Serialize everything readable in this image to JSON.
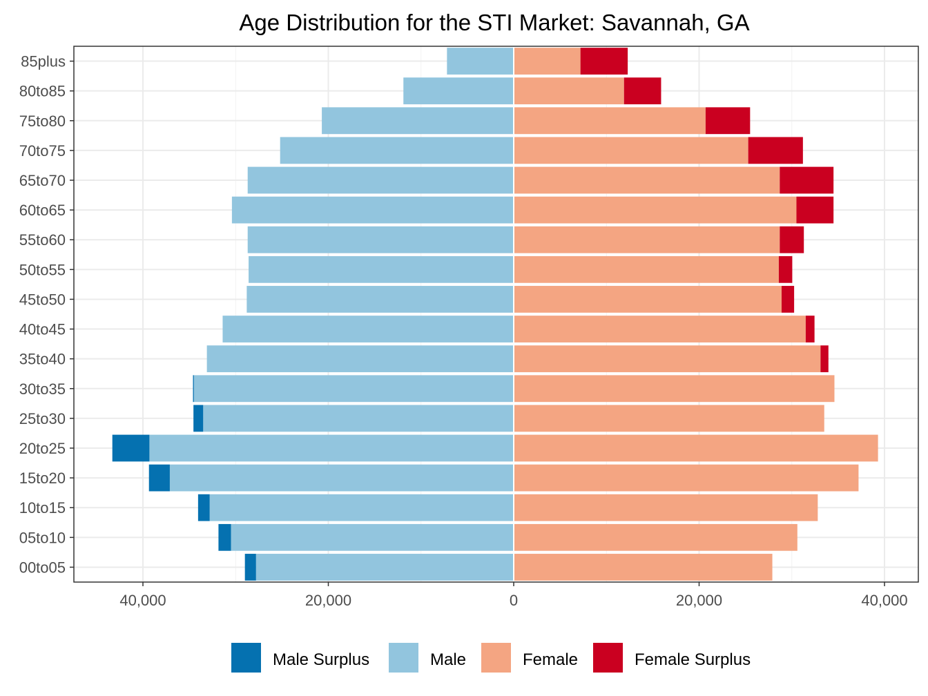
{
  "chart_data": {
    "type": "bar",
    "orientation": "horizontal-diverging",
    "title": "Age Distribution for the STI Market: Savannah, GA",
    "xlabel": "",
    "ylabel": "",
    "categories": [
      "00to05",
      "05to10",
      "10to15",
      "15to20",
      "20to25",
      "25to30",
      "30to35",
      "35to40",
      "40to45",
      "45to50",
      "50to55",
      "55to60",
      "60to65",
      "65to70",
      "70to75",
      "75to80",
      "80to85",
      "85plus"
    ],
    "xlim": [
      -45000,
      45000
    ],
    "x_ticks": [
      -40000,
      -20000,
      0,
      20000,
      40000
    ],
    "x_tick_labels": [
      "40,000",
      "20,000",
      "0",
      "20,000",
      "40,000"
    ],
    "grid": true,
    "legend_position": "bottom",
    "series": [
      {
        "name": "Male Surplus",
        "color": "#0571b0",
        "side": "left",
        "values": [
          1200,
          1350,
          1250,
          2250,
          4000,
          1050,
          100,
          0,
          0,
          0,
          0,
          0,
          0,
          0,
          0,
          0,
          0,
          0
        ]
      },
      {
        "name": "Male",
        "color": "#92c5de",
        "side": "left",
        "values": [
          27800,
          30500,
          32800,
          37100,
          39300,
          33500,
          34500,
          33100,
          31400,
          28800,
          28600,
          28700,
          30400,
          28700,
          25200,
          20700,
          11900,
          7200
        ]
      },
      {
        "name": "Female",
        "color": "#f4a582",
        "side": "right",
        "values": [
          27900,
          30600,
          32800,
          37200,
          39300,
          33500,
          34600,
          33100,
          31500,
          28900,
          28600,
          28700,
          30500,
          28700,
          25300,
          20700,
          11900,
          7200
        ]
      },
      {
        "name": "Female Surplus",
        "color": "#ca0020",
        "side": "right",
        "values": [
          0,
          0,
          0,
          0,
          0,
          0,
          0,
          850,
          950,
          1350,
          1450,
          2600,
          4000,
          5800,
          5900,
          4800,
          4000,
          5100
        ]
      }
    ]
  }
}
